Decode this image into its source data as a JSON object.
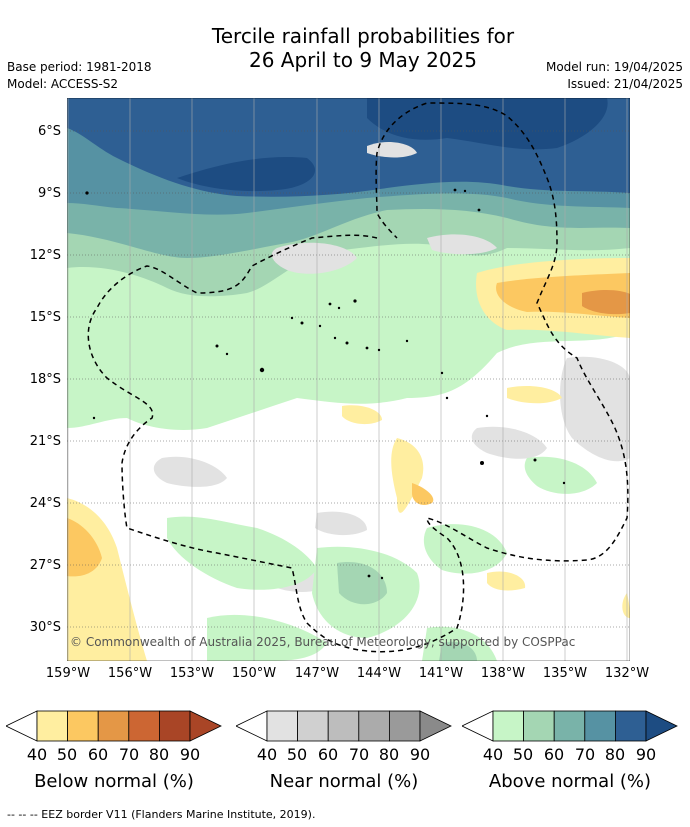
{
  "header": {
    "title_line1": "Tercile rainfall probabilities for",
    "title_line2": "26 April to 9 May 2025",
    "base_period": "Base period: 1981-2018",
    "model": "Model: ACCESS-S2",
    "model_run": "Model run: 19/04/2025",
    "issued": "Issued: 21/04/2025"
  },
  "map": {
    "copyright": "© Commonwealth of Australia 2025, Bureau of Meteorology, supported by COSPPac",
    "lat_labels": [
      "6°S",
      "9°S",
      "12°S",
      "15°S",
      "18°S",
      "21°S",
      "24°S",
      "27°S",
      "30°S"
    ],
    "lon_labels": [
      "159°W",
      "156°W",
      "153°W",
      "150°W",
      "147°W",
      "144°W",
      "141°W",
      "138°W",
      "135°W",
      "132°W"
    ]
  },
  "legend": {
    "ticks": [
      "40",
      "50",
      "60",
      "70",
      "80",
      "90"
    ],
    "below_label": "Below normal (%)",
    "near_label": "Near normal (%)",
    "above_label": "Above normal (%)",
    "below_colors": [
      "#ffeea0",
      "#fcc861",
      "#e49746",
      "#cc6633",
      "#a94526"
    ],
    "near_colors": [
      "#e2e2e2",
      "#d0d0d0",
      "#bdbdbd",
      "#ababab",
      "#9a9a9a"
    ],
    "above_colors": [
      "#c7f5c7",
      "#a4d6b3",
      "#79b3a9",
      "#5692a3",
      "#2e5f93"
    ],
    "below_arrow_color": "#a94526",
    "near_arrow_color": "#8a8a8a",
    "above_arrow_color": "#1d4c82"
  },
  "footer": {
    "eez_note": "--  --  -- EEZ border V11 (Flanders Marine Institute, 2019)."
  }
}
